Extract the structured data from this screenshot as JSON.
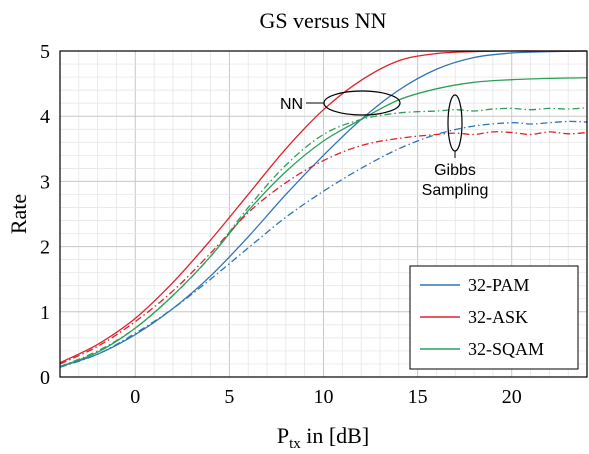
{
  "chart_data": {
    "type": "line",
    "title": "GS versus NN",
    "xlabel": "P",
    "xlabel_sub": "tx",
    "xlabel_suffix": " in [dB]",
    "ylabel": "Rate",
    "xlim": [
      -4,
      24
    ],
    "ylim": [
      0,
      5
    ],
    "xticks": [
      0,
      5,
      10,
      15,
      20
    ],
    "yticks": [
      0,
      1,
      2,
      3,
      4,
      5
    ],
    "grid": true,
    "legend_position": "bottom-right",
    "legend": [
      "32-PAM",
      "32-ASK",
      "32-SQAM"
    ],
    "series": [
      {
        "name": "32-PAM",
        "method": "NN",
        "color": "#2e75b6",
        "dash": "solid",
        "x": [
          -4,
          -2,
          0,
          2,
          4,
          6,
          8,
          10,
          12,
          14,
          16,
          18,
          20,
          22,
          24
        ],
        "y": [
          0.16,
          0.35,
          0.65,
          1.05,
          1.55,
          2.15,
          2.8,
          3.4,
          3.95,
          4.4,
          4.72,
          4.9,
          4.97,
          4.99,
          5.0
        ]
      },
      {
        "name": "32-ASK",
        "method": "NN",
        "color": "#e0202a",
        "dash": "solid",
        "x": [
          -4,
          -2,
          0,
          2,
          4,
          6,
          8,
          10,
          12,
          14,
          16,
          18,
          20,
          22,
          24
        ],
        "y": [
          0.22,
          0.5,
          0.9,
          1.45,
          2.1,
          2.8,
          3.5,
          4.1,
          4.55,
          4.85,
          4.96,
          4.99,
          5.0,
          5.0,
          5.0
        ]
      },
      {
        "name": "32-SQAM",
        "method": "NN",
        "color": "#2ca05a",
        "dash": "solid",
        "x": [
          -4,
          -2,
          0,
          2,
          4,
          6,
          8,
          10,
          12,
          14,
          16,
          18,
          20,
          22,
          24
        ],
        "y": [
          0.16,
          0.38,
          0.75,
          1.25,
          1.85,
          2.55,
          3.15,
          3.62,
          3.95,
          4.25,
          4.42,
          4.52,
          4.56,
          4.58,
          4.59
        ]
      },
      {
        "name": "32-PAM",
        "method": "Gibbs Sampling",
        "color": "#2e75b6",
        "dash": "dashdot",
        "x": [
          -4,
          -2,
          0,
          2,
          4,
          6,
          8,
          10,
          12,
          14,
          16,
          18,
          20,
          21,
          22,
          23,
          24
        ],
        "y": [
          0.15,
          0.35,
          0.67,
          1.05,
          1.5,
          1.98,
          2.45,
          2.85,
          3.2,
          3.5,
          3.72,
          3.85,
          3.9,
          3.88,
          3.9,
          3.92,
          3.91
        ]
      },
      {
        "name": "32-ASK",
        "method": "Gibbs Sampling",
        "color": "#e0202a",
        "dash": "dashdot",
        "x": [
          -4,
          -2,
          0,
          2,
          4,
          6,
          8,
          10,
          12,
          14,
          16,
          17,
          18,
          19,
          20,
          21,
          22,
          23,
          24
        ],
        "y": [
          0.2,
          0.47,
          0.85,
          1.32,
          1.9,
          2.52,
          2.98,
          3.32,
          3.55,
          3.66,
          3.72,
          3.74,
          3.72,
          3.76,
          3.75,
          3.72,
          3.76,
          3.73,
          3.75
        ]
      },
      {
        "name": "32-SQAM",
        "method": "Gibbs Sampling",
        "color": "#2ca05a",
        "dash": "dashdot",
        "x": [
          -4,
          -2,
          0,
          2,
          4,
          6,
          8,
          10,
          12,
          14,
          16,
          17,
          18,
          19,
          20,
          21,
          22,
          23,
          24
        ],
        "y": [
          0.16,
          0.4,
          0.75,
          1.25,
          1.85,
          2.6,
          3.25,
          3.72,
          3.95,
          4.05,
          4.08,
          4.1,
          4.08,
          4.11,
          4.12,
          4.1,
          4.12,
          4.11,
          4.13
        ]
      }
    ],
    "annotations": {
      "nn_label": "NN",
      "gibbs_line1": "Gibbs",
      "gibbs_line2": "Sampling"
    }
  }
}
